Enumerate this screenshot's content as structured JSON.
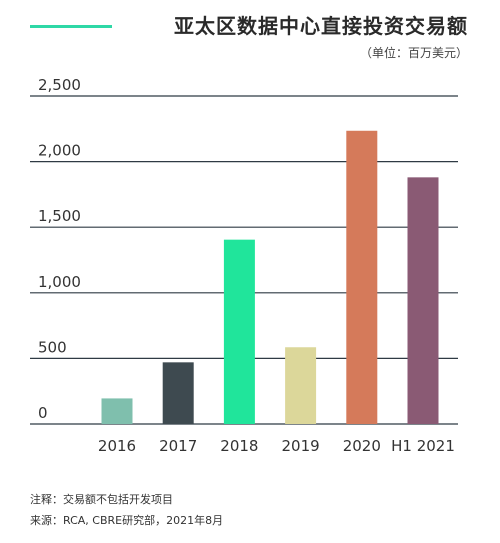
{
  "header": {
    "title": "亚太区数据中心直接投资交易额",
    "unit": "（单位：百万美元）"
  },
  "footer": {
    "note": "注释：交易额不包括开发项目",
    "source": "来源：RCA, CBRE研究部，2021年8月"
  },
  "colors": {
    "accent": "#2fd8a6",
    "grid": "#2f3a44",
    "tick_text": "#333333"
  },
  "chart_data": {
    "type": "bar",
    "categories": [
      "2016",
      "2017",
      "2018",
      "2019",
      "2020",
      "H1 2021"
    ],
    "values": [
      195,
      470,
      1405,
      585,
      2235,
      1880
    ],
    "bar_colors": [
      "#7fbfad",
      "#3e4a50",
      "#20e59b",
      "#dcd79a",
      "#d57a5a",
      "#8a5a74"
    ],
    "title": "亚太区数据中心直接投资交易额",
    "xlabel": "",
    "ylabel": "",
    "ylim": [
      0,
      2500
    ],
    "yticks": [
      0,
      500,
      1000,
      1500,
      2000,
      2500
    ],
    "ytick_labels": [
      "0",
      "500",
      "1,000",
      "1,500",
      "2,000",
      "2,500"
    ],
    "grid": true
  }
}
